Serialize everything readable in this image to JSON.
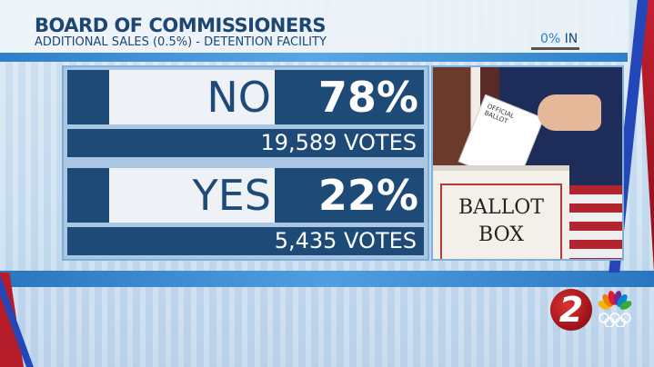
{
  "header": {
    "title": "BOARD OF COMMISSIONERS",
    "subtitle": "ADDITIONAL SALES (0.5%) - DETENTION FACILITY",
    "reporting_pct": "0%",
    "reporting_suffix": "IN"
  },
  "results": [
    {
      "label": "NO",
      "percent": "78%",
      "votes": "19,589 VOTES"
    },
    {
      "label": "YES",
      "percent": "22%",
      "votes": "5,435 VOTES"
    }
  ],
  "photo": {
    "box_text_line1": "BALLOT",
    "box_text_line2": "BOX",
    "ballot_text": "OFFICIAL BALLOT"
  },
  "logo": {
    "station_number": "2"
  },
  "colors": {
    "navy": "#1d4a76",
    "accent_blue": "#2d7fc4",
    "red": "#b51d2a"
  }
}
